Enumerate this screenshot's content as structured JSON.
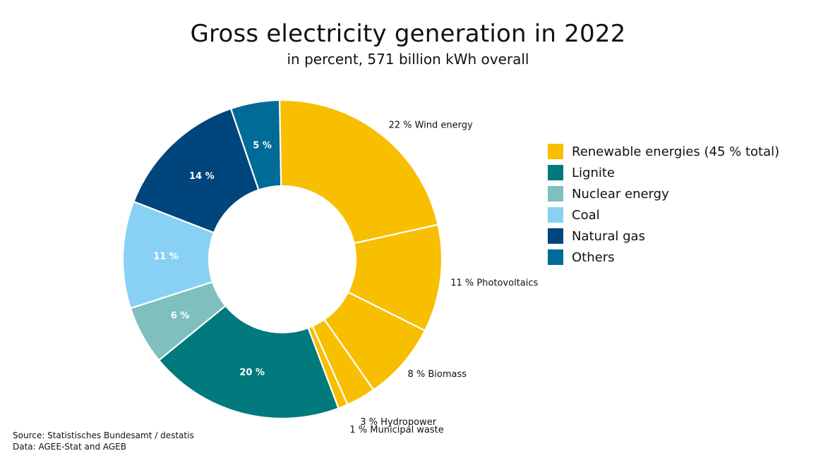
{
  "header": {
    "title": "Gross electricity generation in 2022",
    "subtitle": "in percent, 571 billion kWh overall"
  },
  "legend": [
    {
      "label": "Renewable energies (45 % total)",
      "color": "#F8BE00"
    },
    {
      "label": "Lignite",
      "color": "#007A7C"
    },
    {
      "label": "Nuclear energy",
      "color": "#7FBFBF"
    },
    {
      "label": "Coal",
      "color": "#88D1F4"
    },
    {
      "label": "Natural gas",
      "color": "#00457B"
    },
    {
      "label": "Others",
      "color": "#006B96"
    }
  ],
  "footer": {
    "source": "Source: Statistisches Bundesamt / destatis",
    "data": "Data: AGEE-Stat and AGEB"
  },
  "chart_data": {
    "type": "pie",
    "title": "Gross electricity generation in 2022",
    "subtitle": "in percent, 571 billion kWh overall",
    "slices": [
      {
        "category": "Renewable energies",
        "label": "22 % Wind energy",
        "value": 22,
        "color": "#F8BE00",
        "label_position": "outside"
      },
      {
        "category": "Renewable energies",
        "label": "11 % Photovoltaics",
        "value": 11,
        "color": "#F8BE00",
        "label_position": "outside"
      },
      {
        "category": "Renewable energies",
        "label": "8 % Biomass",
        "value": 8,
        "color": "#F8BE00",
        "label_position": "outside"
      },
      {
        "category": "Renewable energies",
        "label": "3 % Hydropower",
        "value": 3,
        "color": "#F8BE00",
        "label_position": "outside"
      },
      {
        "category": "Renewable energies",
        "label": "1 % Municipal waste",
        "value": 1,
        "color": "#F8BE00",
        "label_position": "outside"
      },
      {
        "category": "Lignite",
        "label": "20 %",
        "value": 20,
        "color": "#007A7C",
        "label_position": "inside"
      },
      {
        "category": "Nuclear energy",
        "label": "6 %",
        "value": 6,
        "color": "#7FBFBF",
        "label_position": "inside"
      },
      {
        "category": "Coal",
        "label": "11 %",
        "value": 11,
        "color": "#88D1F4",
        "label_position": "inside"
      },
      {
        "category": "Natural gas",
        "label": "14 %",
        "value": 14,
        "color": "#00457B",
        "label_position": "inside"
      },
      {
        "category": "Others",
        "label": "5 %",
        "value": 5,
        "color": "#006B96",
        "label_position": "inside"
      }
    ],
    "legend_position": "right"
  }
}
